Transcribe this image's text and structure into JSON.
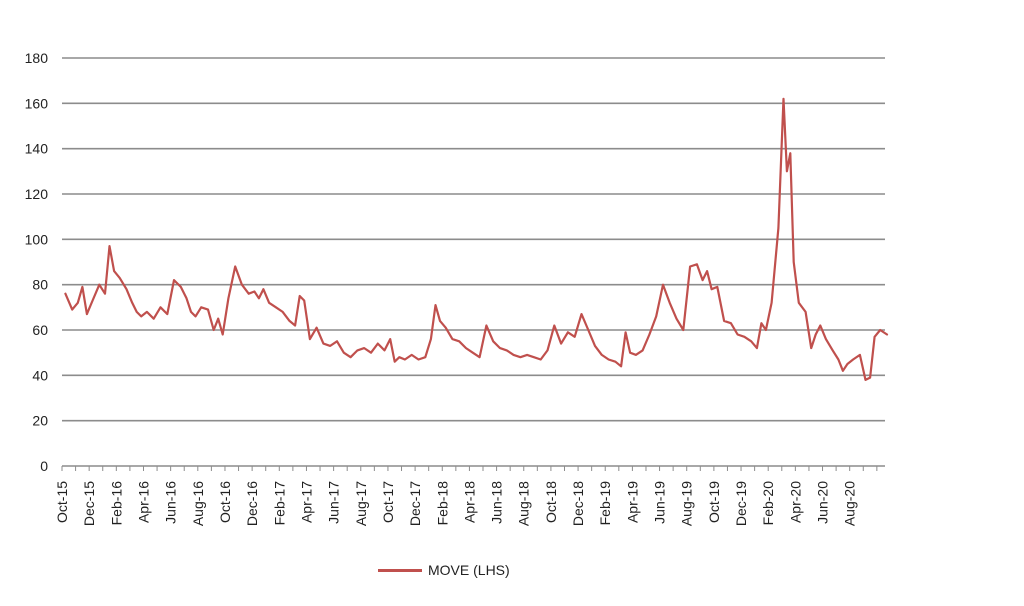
{
  "chart_data": {
    "type": "line",
    "title": "",
    "xlabel": "",
    "ylabel": "",
    "ylim": [
      0,
      180
    ],
    "yticks": [
      0,
      20,
      40,
      60,
      80,
      100,
      120,
      140,
      160,
      180
    ],
    "grid": true,
    "legend_position": "bottom-center",
    "xtick_labels": [
      "Oct-15",
      "Dec-15",
      "Feb-16",
      "Apr-16",
      "Jun-16",
      "Aug-16",
      "Oct-16",
      "Dec-16",
      "Feb-17",
      "Apr-17",
      "Jun-17",
      "Aug-17",
      "Oct-17",
      "Dec-17",
      "Feb-18",
      "Apr-18",
      "Jun-18",
      "Aug-18",
      "Oct-18",
      "Dec-18",
      "Feb-19",
      "Apr-19",
      "Jun-19",
      "Aug-19",
      "Oct-19",
      "Dec-19",
      "Feb-20",
      "Apr-20",
      "Jun-20",
      "Aug-20"
    ],
    "series": [
      {
        "name": "MOVE (LHS)",
        "color": "#c0504d",
        "points": [
          [
            "Oct-15",
            76
          ],
          [
            "Oct-15",
            69
          ],
          [
            "Nov-15",
            72
          ],
          [
            "Nov-15",
            79
          ],
          [
            "Nov-15",
            67
          ],
          [
            "Dec-15",
            73
          ],
          [
            "Dec-15",
            80
          ],
          [
            "Jan-16",
            76
          ],
          [
            "Jan-16",
            97
          ],
          [
            "Jan-16",
            86
          ],
          [
            "Feb-16",
            83
          ],
          [
            "Feb-16",
            78
          ],
          [
            "Mar-16",
            72
          ],
          [
            "Mar-16",
            68
          ],
          [
            "Mar-16",
            66
          ],
          [
            "Apr-16",
            68
          ],
          [
            "Apr-16",
            65
          ],
          [
            "May-16",
            70
          ],
          [
            "May-16",
            67
          ],
          [
            "Jun-16",
            82
          ],
          [
            "Jun-16",
            79
          ],
          [
            "Jul-16",
            74
          ],
          [
            "Jul-16",
            68
          ],
          [
            "Jul-16",
            66
          ],
          [
            "Aug-16",
            70
          ],
          [
            "Aug-16",
            69
          ],
          [
            "Sep-16",
            60
          ],
          [
            "Sep-16",
            65
          ],
          [
            "Sep-16",
            58
          ],
          [
            "Oct-16",
            74
          ],
          [
            "Oct-16",
            88
          ],
          [
            "Nov-16",
            80
          ],
          [
            "Nov-16",
            76
          ],
          [
            "Dec-16",
            77
          ],
          [
            "Dec-16",
            74
          ],
          [
            "Dec-16",
            78
          ],
          [
            "Jan-17",
            72
          ],
          [
            "Jan-17",
            70
          ],
          [
            "Feb-17",
            68
          ],
          [
            "Feb-17",
            64
          ],
          [
            "Mar-17",
            62
          ],
          [
            "Mar-17",
            75
          ],
          [
            "Mar-17",
            73
          ],
          [
            "Apr-17",
            56
          ],
          [
            "Apr-17",
            61
          ],
          [
            "May-17",
            54
          ],
          [
            "May-17",
            53
          ],
          [
            "Jun-17",
            55
          ],
          [
            "Jun-17",
            50
          ],
          [
            "Jul-17",
            48
          ],
          [
            "Jul-17",
            51
          ],
          [
            "Aug-17",
            52
          ],
          [
            "Aug-17",
            50
          ],
          [
            "Sep-17",
            54
          ],
          [
            "Sep-17",
            51
          ],
          [
            "Oct-17",
            56
          ],
          [
            "Oct-17",
            46
          ],
          [
            "Oct-17",
            48
          ],
          [
            "Nov-17",
            47
          ],
          [
            "Nov-17",
            49
          ],
          [
            "Dec-17",
            47
          ],
          [
            "Dec-17",
            48
          ],
          [
            "Jan-18",
            56
          ],
          [
            "Jan-18",
            71
          ],
          [
            "Jan-18",
            64
          ],
          [
            "Feb-18",
            61
          ],
          [
            "Feb-18",
            56
          ],
          [
            "Mar-18",
            55
          ],
          [
            "Mar-18",
            52
          ],
          [
            "Apr-18",
            50
          ],
          [
            "Apr-18",
            48
          ],
          [
            "May-18",
            62
          ],
          [
            "May-18",
            55
          ],
          [
            "Jun-18",
            52
          ],
          [
            "Jun-18",
            51
          ],
          [
            "Jul-18",
            49
          ],
          [
            "Jul-18",
            48
          ],
          [
            "Aug-18",
            49
          ],
          [
            "Aug-18",
            48
          ],
          [
            "Sep-18",
            47
          ],
          [
            "Sep-18",
            51
          ],
          [
            "Oct-18",
            62
          ],
          [
            "Oct-18",
            54
          ],
          [
            "Nov-18",
            59
          ],
          [
            "Nov-18",
            57
          ],
          [
            "Dec-18",
            67
          ],
          [
            "Dec-18",
            60
          ],
          [
            "Jan-19",
            53
          ],
          [
            "Jan-19",
            49
          ],
          [
            "Feb-19",
            47
          ],
          [
            "Feb-19",
            46
          ],
          [
            "Mar-19",
            44
          ],
          [
            "Mar-19",
            59
          ],
          [
            "Mar-19",
            50
          ],
          [
            "Apr-19",
            49
          ],
          [
            "Apr-19",
            51
          ],
          [
            "May-19",
            58
          ],
          [
            "May-19",
            66
          ],
          [
            "Jun-19",
            80
          ],
          [
            "Jun-19",
            72
          ],
          [
            "Jul-19",
            65
          ],
          [
            "Jul-19",
            60
          ],
          [
            "Aug-19",
            88
          ],
          [
            "Aug-19",
            89
          ],
          [
            "Sep-19",
            82
          ],
          [
            "Sep-19",
            86
          ],
          [
            "Sep-19",
            78
          ],
          [
            "Oct-19",
            79
          ],
          [
            "Oct-19",
            64
          ],
          [
            "Nov-19",
            63
          ],
          [
            "Nov-19",
            58
          ],
          [
            "Dec-19",
            57
          ],
          [
            "Dec-19",
            55
          ],
          [
            "Jan-20",
            52
          ],
          [
            "Jan-20",
            63
          ],
          [
            "Jan-20",
            60
          ],
          [
            "Feb-20",
            72
          ],
          [
            "Feb-20",
            105
          ],
          [
            "Mar-20",
            162
          ],
          [
            "Mar-20",
            130
          ],
          [
            "Mar-20",
            138
          ],
          [
            "Mar-20",
            90
          ],
          [
            "Apr-20",
            72
          ],
          [
            "Apr-20",
            68
          ],
          [
            "May-20",
            52
          ],
          [
            "May-20",
            58
          ],
          [
            "May-20",
            62
          ],
          [
            "Jun-20",
            56
          ],
          [
            "Jun-20",
            51
          ],
          [
            "Jul-20",
            47
          ],
          [
            "Jul-20",
            42
          ],
          [
            "Jul-20",
            45
          ],
          [
            "Aug-20",
            47
          ],
          [
            "Aug-20",
            49
          ],
          [
            "Sep-20",
            38
          ],
          [
            "Sep-20",
            39
          ],
          [
            "Sep-20",
            57
          ],
          [
            "Oct-20",
            60
          ],
          [
            "Oct-20",
            58
          ]
        ]
      }
    ]
  },
  "legend": {
    "label": "MOVE (LHS)"
  }
}
